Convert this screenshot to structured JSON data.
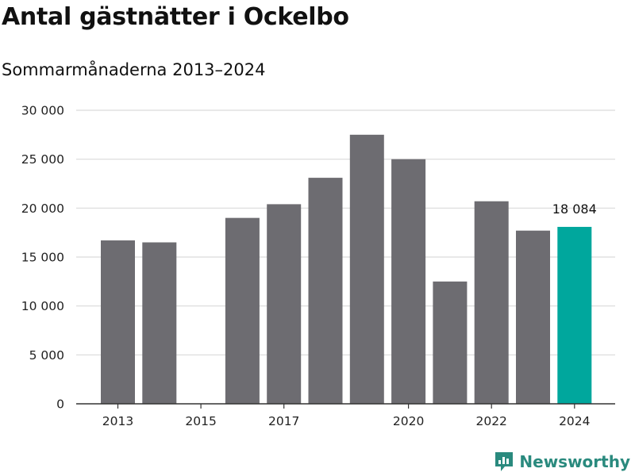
{
  "title": "Antal gästnätter i Ockelbo",
  "subtitle": "Sommarmånaderna 2013–2024",
  "brand": {
    "name": "Newsworthy",
    "icon": "newsworthy-logo-icon",
    "color": "#2a8a7e"
  },
  "chart_data": {
    "type": "bar",
    "title": "Antal gästnätter i Ockelbo",
    "subtitle": "Sommarmånaderna 2013–2024",
    "xlabel": "",
    "ylabel": "",
    "ylim": [
      0,
      30000
    ],
    "yticks": [
      0,
      5000,
      10000,
      15000,
      20000,
      25000,
      30000
    ],
    "ytick_labels": [
      "0",
      "5 000",
      "10 000",
      "15 000",
      "20 000",
      "25 000",
      "30 000"
    ],
    "xtick_labels": [
      "2013",
      "2015",
      "2017",
      "2020",
      "2022",
      "2024"
    ],
    "grid": true,
    "categories": [
      "2013",
      "2014",
      "2015",
      "2016",
      "2017",
      "2018",
      "2019",
      "2020",
      "2021",
      "2022",
      "2023",
      "2024"
    ],
    "values": [
      16700,
      16500,
      null,
      19000,
      20400,
      23100,
      27500,
      25000,
      12500,
      20700,
      17700,
      18084
    ],
    "highlight_index": 11,
    "highlight_label": "18 084",
    "colors": {
      "bar": "#6d6c71",
      "highlight": "#00a79d",
      "grid": "#d9d9d9",
      "axis": "#333333"
    }
  }
}
